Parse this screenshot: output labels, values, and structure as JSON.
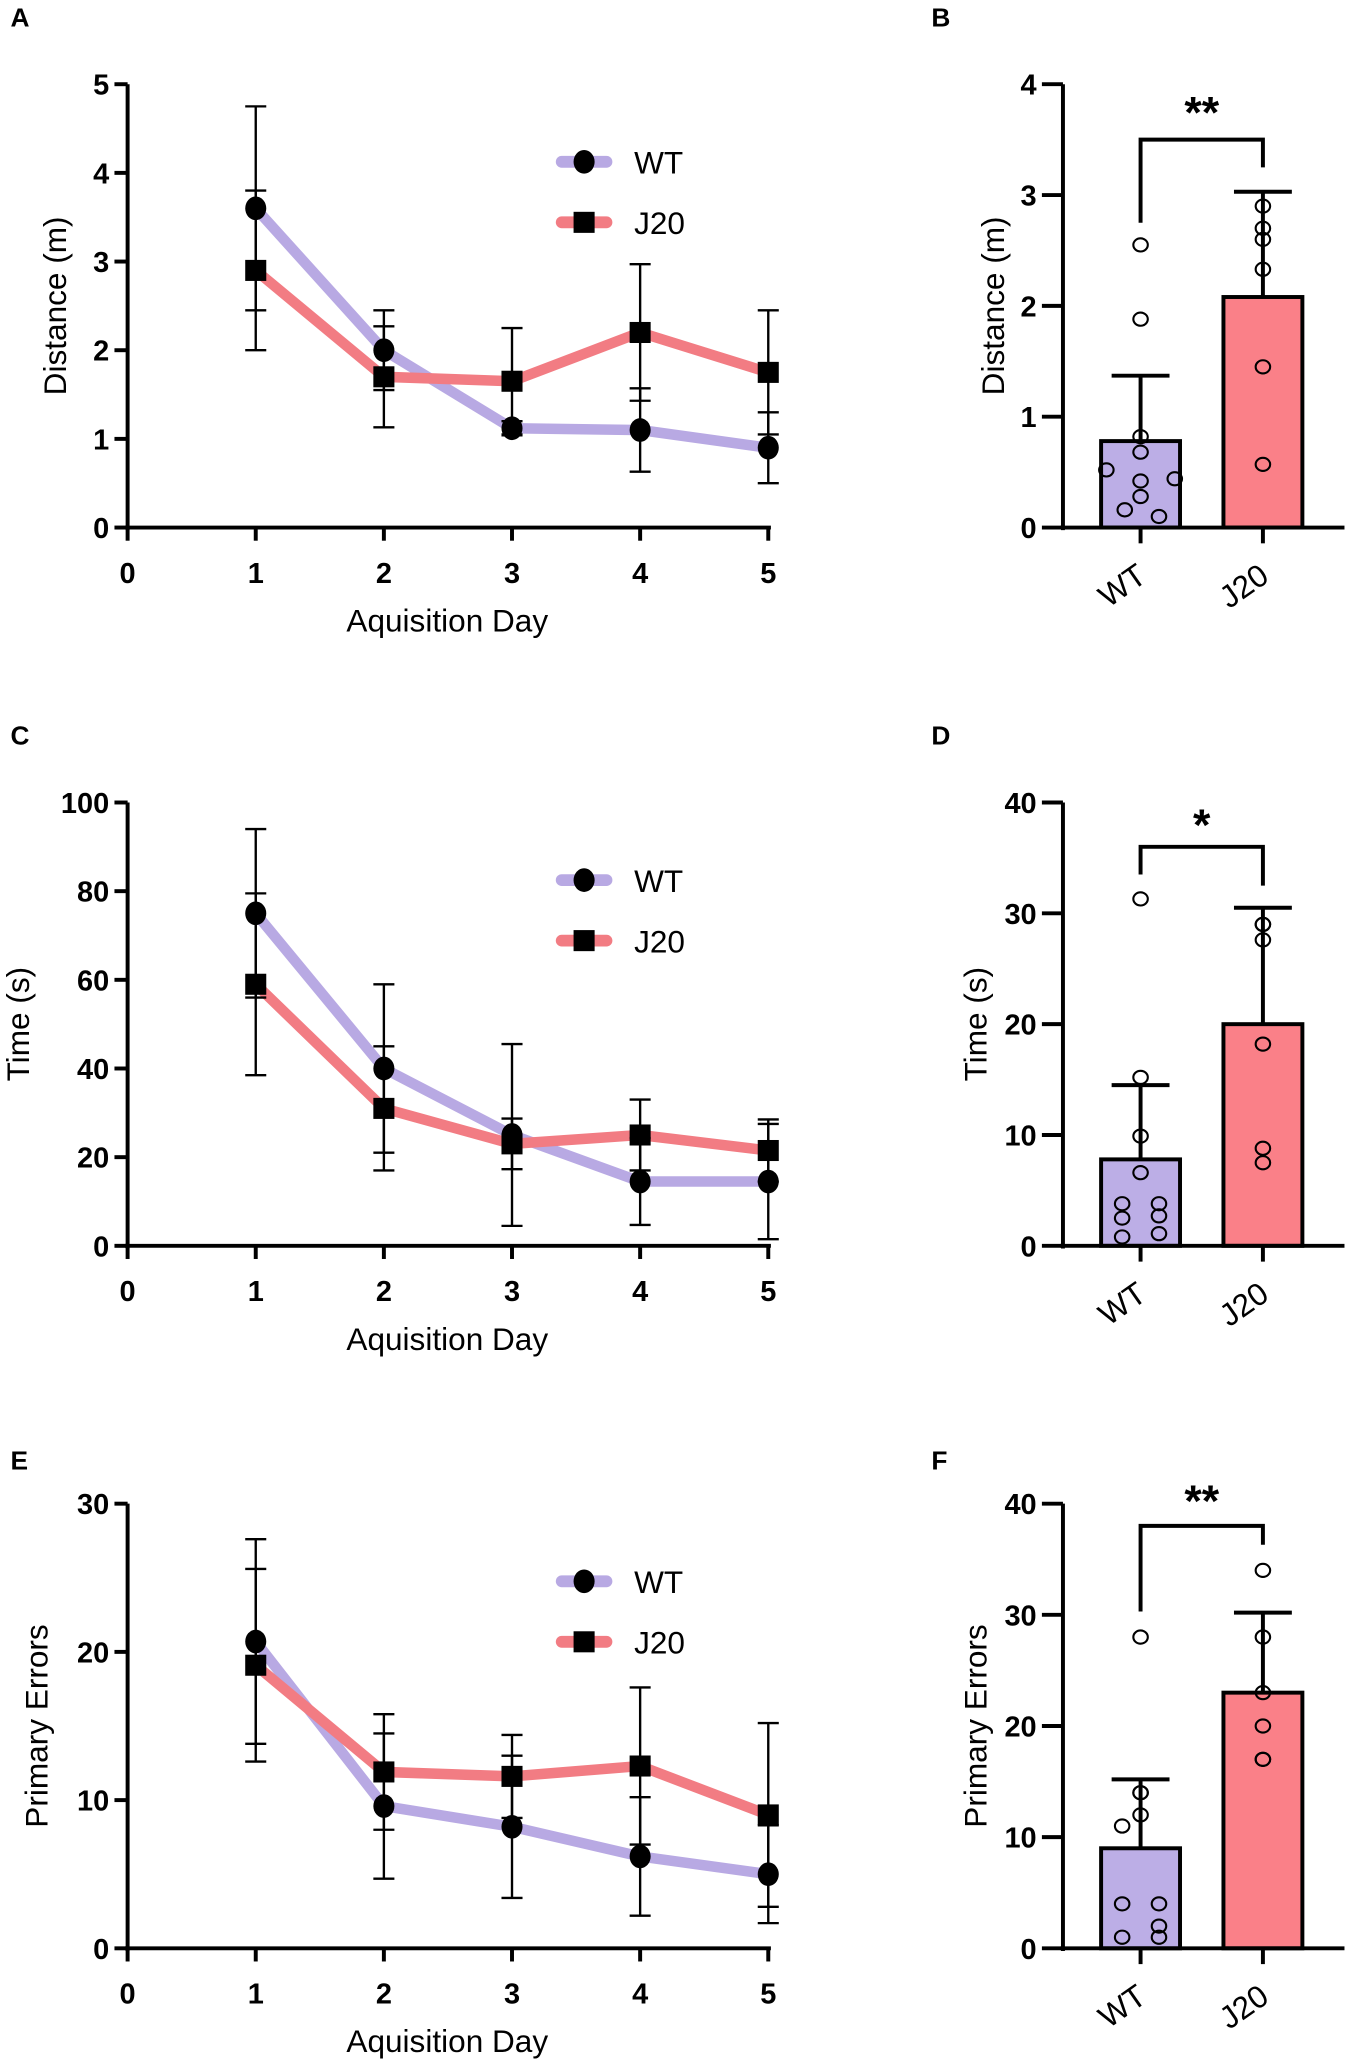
{
  "chart_data": [
    {
      "panel": "A",
      "type": "line",
      "xlabel": "Aquisition Day",
      "ylabel": "Distance (m)",
      "xlim": [
        0,
        5
      ],
      "ylim": [
        0,
        5
      ],
      "xticks": [
        0,
        1,
        2,
        3,
        4,
        5
      ],
      "yticks": [
        0,
        1,
        2,
        3,
        4,
        5
      ],
      "legend_position": "top-right",
      "grid": false,
      "series": [
        {
          "name": "WT",
          "marker": "circle",
          "color": "#b8a9e3",
          "x": [
            1,
            2,
            3,
            4,
            5
          ],
          "y": [
            3.6,
            2.0,
            1.12,
            1.1,
            0.9
          ],
          "error": [
            1.15,
            0.45,
            0.08,
            0.47,
            0.4
          ]
        },
        {
          "name": "J20",
          "marker": "square",
          "color": "#f27c83",
          "x": [
            1,
            2,
            3,
            4,
            5
          ],
          "y": [
            2.9,
            1.7,
            1.65,
            2.2,
            1.75
          ],
          "error": [
            0.9,
            0.57,
            0.6,
            0.77,
            0.7
          ]
        }
      ]
    },
    {
      "panel": "B",
      "type": "bar",
      "ylabel": "Distance (m)",
      "ylim": [
        0,
        4
      ],
      "yticks": [
        0,
        1,
        2,
        3,
        4
      ],
      "categories": [
        "WT",
        "J20"
      ],
      "values": [
        0.78,
        2.08
      ],
      "error": [
        0.59,
        0.95
      ],
      "colors": [
        "#bcaee6",
        "#fa8088"
      ],
      "points": [
        [
          2.55,
          1.88,
          0.82,
          0.68,
          0.52,
          0.42,
          0.44,
          0.28,
          0.16,
          0.1
        ],
        [
          2.9,
          2.7,
          2.6,
          2.33,
          1.45,
          0.57
        ]
      ],
      "significance": "**"
    },
    {
      "panel": "C",
      "type": "line",
      "xlabel": "Aquisition Day",
      "ylabel": "Time (s)",
      "xlim": [
        0,
        5
      ],
      "ylim": [
        0,
        100
      ],
      "xticks": [
        0,
        1,
        2,
        3,
        4,
        5
      ],
      "yticks": [
        0,
        20,
        40,
        60,
        80,
        100
      ],
      "legend_position": "top-right",
      "grid": false,
      "series": [
        {
          "name": "WT",
          "marker": "circle",
          "color": "#b8a9e3",
          "x": [
            1,
            2,
            3,
            4,
            5
          ],
          "y": [
            75,
            40,
            25,
            14.5,
            14.5
          ],
          "error": [
            19,
            19,
            20.5,
            9.8,
            13
          ]
        },
        {
          "name": "J20",
          "marker": "square",
          "color": "#f27c83",
          "x": [
            1,
            2,
            3,
            4,
            5
          ],
          "y": [
            59,
            31,
            23,
            25,
            21.5
          ],
          "error": [
            20.5,
            14,
            5.7,
            8,
            7
          ]
        }
      ]
    },
    {
      "panel": "D",
      "type": "bar",
      "ylabel": "Time (s)",
      "ylim": [
        0,
        40
      ],
      "yticks": [
        0,
        10,
        20,
        30,
        40
      ],
      "categories": [
        "WT",
        "J20"
      ],
      "values": [
        7.8,
        20.0
      ],
      "error": [
        6.7,
        10.5
      ],
      "colors": [
        "#bcaee6",
        "#fa8088"
      ],
      "points": [
        [
          31.3,
          15.2,
          9.9,
          6.6,
          3.8,
          3.8,
          2.5,
          2.7,
          0.8,
          1.1
        ],
        [
          29,
          29,
          27.6,
          18.2,
          8.8,
          7.5
        ]
      ],
      "significance": "*"
    },
    {
      "panel": "E",
      "type": "line",
      "xlabel": "Aquisition Day",
      "ylabel": "Primary Errors",
      "xlim": [
        0,
        5
      ],
      "ylim": [
        0,
        30
      ],
      "xticks": [
        0,
        1,
        2,
        3,
        4,
        5
      ],
      "yticks": [
        0,
        10,
        20,
        30
      ],
      "legend_position": "top-right",
      "grid": false,
      "series": [
        {
          "name": "WT",
          "marker": "circle",
          "color": "#b8a9e3",
          "x": [
            1,
            2,
            3,
            4,
            5
          ],
          "y": [
            20.7,
            9.6,
            8.2,
            6.2,
            5.0
          ],
          "error": [
            6.9,
            4.9,
            4.8,
            4.0,
            3.3
          ]
        },
        {
          "name": "J20",
          "marker": "square",
          "color": "#f27c83",
          "x": [
            1,
            2,
            3,
            4,
            5
          ],
          "y": [
            19.1,
            11.9,
            11.6,
            12.3,
            9.0
          ],
          "error": [
            6.5,
            3.9,
            2.8,
            5.3,
            6.2
          ]
        }
      ]
    },
    {
      "panel": "F",
      "type": "bar",
      "ylabel": "Primary Errors",
      "ylim": [
        0,
        40
      ],
      "yticks": [
        0,
        10,
        20,
        30,
        40
      ],
      "categories": [
        "WT",
        "J20"
      ],
      "values": [
        9.0,
        23.0
      ],
      "error": [
        6.2,
        7.2
      ],
      "colors": [
        "#bcaee6",
        "#fa8088"
      ],
      "points": [
        [
          28,
          14,
          14,
          12,
          11,
          4,
          4,
          2,
          1,
          1
        ],
        [
          34,
          28,
          23,
          20,
          17,
          17
        ]
      ],
      "significance": "**"
    }
  ]
}
